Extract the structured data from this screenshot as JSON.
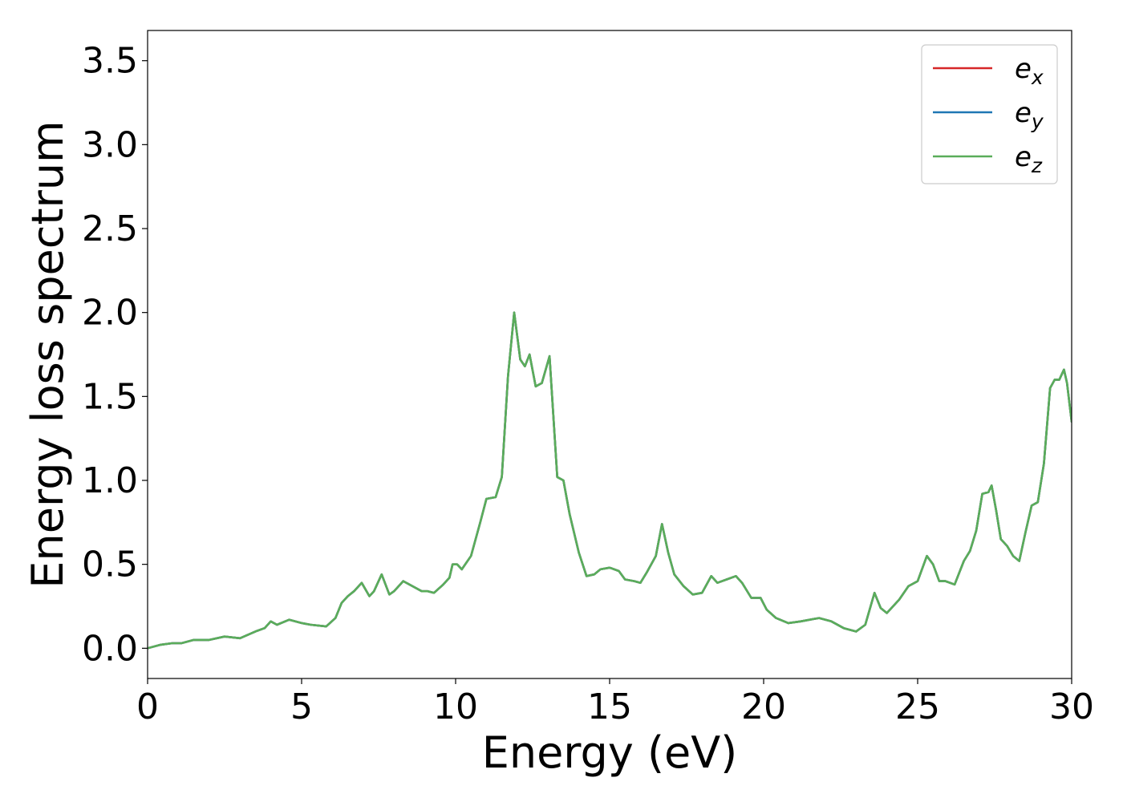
{
  "chart_data": {
    "type": "line",
    "title": "",
    "xlabel": "Energy (eV)",
    "ylabel": "Energy loss spectrum",
    "xlim": [
      0,
      30
    ],
    "ylim": [
      -0.18,
      3.68
    ],
    "xticks": [
      0,
      5,
      10,
      15,
      20,
      25,
      30
    ],
    "yticks": [
      0.0,
      0.5,
      1.0,
      1.5,
      2.0,
      2.5,
      3.0,
      3.5
    ],
    "xtick_labels": [
      "0",
      "5",
      "10",
      "15",
      "20",
      "25",
      "30"
    ],
    "ytick_labels": [
      "0.0",
      "0.5",
      "1.0",
      "1.5",
      "2.0",
      "2.5",
      "3.0",
      "3.5"
    ],
    "grid": false,
    "legend_position": "top-right",
    "x": [
      0,
      0.4,
      0.8,
      1.1,
      1.5,
      2.0,
      2.5,
      3.0,
      3.5,
      3.8,
      4.0,
      4.2,
      4.6,
      5.0,
      5.3,
      5.8,
      6.1,
      6.3,
      6.5,
      6.7,
      6.95,
      7.2,
      7.35,
      7.6,
      7.85,
      8.0,
      8.3,
      8.6,
      8.9,
      9.1,
      9.3,
      9.6,
      9.8,
      9.9,
      10.05,
      10.2,
      10.5,
      10.8,
      11.0,
      11.3,
      11.5,
      11.7,
      11.9,
      12.1,
      12.25,
      12.4,
      12.6,
      12.8,
      13.05,
      13.3,
      13.5,
      13.7,
      14.0,
      14.25,
      14.5,
      14.7,
      15.0,
      15.3,
      15.5,
      15.8,
      16.0,
      16.2,
      16.5,
      16.7,
      16.9,
      17.1,
      17.4,
      17.7,
      18.0,
      18.3,
      18.5,
      18.8,
      19.1,
      19.3,
      19.6,
      19.9,
      20.1,
      20.4,
      20.8,
      21.2,
      21.8,
      22.2,
      22.6,
      23.0,
      23.3,
      23.6,
      23.8,
      24.0,
      24.4,
      24.7,
      25.0,
      25.3,
      25.5,
      25.7,
      25.9,
      26.2,
      26.5,
      26.7,
      26.9,
      27.1,
      27.3,
      27.4,
      27.55,
      27.7,
      27.9,
      28.1,
      28.3,
      28.5,
      28.7,
      28.9,
      29.1,
      29.3,
      29.45,
      29.6,
      29.75,
      29.85,
      30.0
    ],
    "series": [
      {
        "name": "e_x",
        "color": "#d62728",
        "values": [
          0.0,
          0.02,
          0.03,
          0.03,
          0.05,
          0.05,
          0.07,
          0.06,
          0.1,
          0.12,
          0.16,
          0.14,
          0.17,
          0.15,
          0.14,
          0.13,
          0.18,
          0.27,
          0.31,
          0.34,
          0.39,
          0.31,
          0.34,
          0.44,
          0.32,
          0.34,
          0.4,
          0.37,
          0.34,
          0.34,
          0.33,
          0.38,
          0.42,
          0.5,
          0.5,
          0.47,
          0.55,
          0.75,
          0.89,
          0.9,
          1.02,
          1.62,
          2.0,
          1.72,
          1.68,
          1.75,
          1.56,
          1.58,
          1.74,
          1.02,
          1.0,
          0.8,
          0.57,
          0.43,
          0.44,
          0.47,
          0.48,
          0.46,
          0.41,
          0.4,
          0.39,
          0.45,
          0.55,
          0.74,
          0.57,
          0.44,
          0.37,
          0.32,
          0.33,
          0.43,
          0.39,
          0.41,
          0.43,
          0.39,
          0.3,
          0.3,
          0.23,
          0.18,
          0.15,
          0.16,
          0.18,
          0.16,
          0.12,
          0.1,
          0.14,
          0.33,
          0.24,
          0.21,
          0.29,
          0.37,
          0.4,
          0.55,
          0.5,
          0.4,
          0.4,
          0.38,
          0.52,
          0.58,
          0.7,
          0.92,
          0.93,
          0.97,
          0.82,
          0.65,
          0.61,
          0.55,
          0.52,
          0.69,
          0.85,
          0.87,
          1.1,
          1.55,
          1.6,
          1.6,
          1.66,
          1.58,
          1.35
        ]
      },
      {
        "name": "e_y",
        "color": "#1f77b4",
        "values": [
          0.0,
          0.02,
          0.03,
          0.03,
          0.05,
          0.05,
          0.07,
          0.06,
          0.1,
          0.12,
          0.16,
          0.14,
          0.17,
          0.15,
          0.14,
          0.13,
          0.18,
          0.27,
          0.31,
          0.34,
          0.39,
          0.31,
          0.34,
          0.44,
          0.32,
          0.34,
          0.4,
          0.37,
          0.34,
          0.34,
          0.33,
          0.38,
          0.42,
          0.5,
          0.5,
          0.47,
          0.55,
          0.75,
          0.89,
          0.9,
          1.02,
          1.62,
          2.0,
          1.72,
          1.68,
          1.75,
          1.56,
          1.58,
          1.74,
          1.02,
          1.0,
          0.8,
          0.57,
          0.43,
          0.44,
          0.47,
          0.48,
          0.46,
          0.41,
          0.4,
          0.39,
          0.45,
          0.55,
          0.74,
          0.57,
          0.44,
          0.37,
          0.32,
          0.33,
          0.43,
          0.39,
          0.41,
          0.43,
          0.39,
          0.3,
          0.3,
          0.23,
          0.18,
          0.15,
          0.16,
          0.18,
          0.16,
          0.12,
          0.1,
          0.14,
          0.33,
          0.24,
          0.21,
          0.29,
          0.37,
          0.4,
          0.55,
          0.5,
          0.4,
          0.4,
          0.38,
          0.52,
          0.58,
          0.7,
          0.92,
          0.93,
          0.97,
          0.82,
          0.65,
          0.61,
          0.55,
          0.52,
          0.69,
          0.85,
          0.87,
          1.1,
          1.55,
          1.6,
          1.6,
          1.66,
          1.58,
          1.35
        ]
      },
      {
        "name": "e_z",
        "color": "#5aad5a",
        "values": [
          0.0,
          0.02,
          0.03,
          0.03,
          0.05,
          0.05,
          0.07,
          0.06,
          0.1,
          0.12,
          0.16,
          0.14,
          0.17,
          0.15,
          0.14,
          0.13,
          0.18,
          0.27,
          0.31,
          0.34,
          0.39,
          0.31,
          0.34,
          0.44,
          0.32,
          0.34,
          0.4,
          0.37,
          0.34,
          0.34,
          0.33,
          0.38,
          0.42,
          0.5,
          0.5,
          0.47,
          0.55,
          0.75,
          0.89,
          0.9,
          1.02,
          1.62,
          2.0,
          1.72,
          1.68,
          1.75,
          1.56,
          1.58,
          1.74,
          1.02,
          1.0,
          0.8,
          0.57,
          0.43,
          0.44,
          0.47,
          0.48,
          0.46,
          0.41,
          0.4,
          0.39,
          0.45,
          0.55,
          0.74,
          0.57,
          0.44,
          0.37,
          0.32,
          0.33,
          0.43,
          0.39,
          0.41,
          0.43,
          0.39,
          0.3,
          0.3,
          0.23,
          0.18,
          0.15,
          0.16,
          0.18,
          0.16,
          0.12,
          0.1,
          0.14,
          0.33,
          0.24,
          0.21,
          0.29,
          0.37,
          0.4,
          0.55,
          0.5,
          0.4,
          0.4,
          0.38,
          0.52,
          0.58,
          0.7,
          0.92,
          0.93,
          0.97,
          0.82,
          0.65,
          0.61,
          0.55,
          0.52,
          0.69,
          0.85,
          0.87,
          1.1,
          1.55,
          1.6,
          1.6,
          1.66,
          1.58,
          1.35
        ]
      }
    ],
    "legend": [
      {
        "base": "e",
        "sub": "x",
        "color": "#d62728"
      },
      {
        "base": "e",
        "sub": "y",
        "color": "#1f77b4"
      },
      {
        "base": "e",
        "sub": "z",
        "color": "#5aad5a"
      }
    ]
  }
}
